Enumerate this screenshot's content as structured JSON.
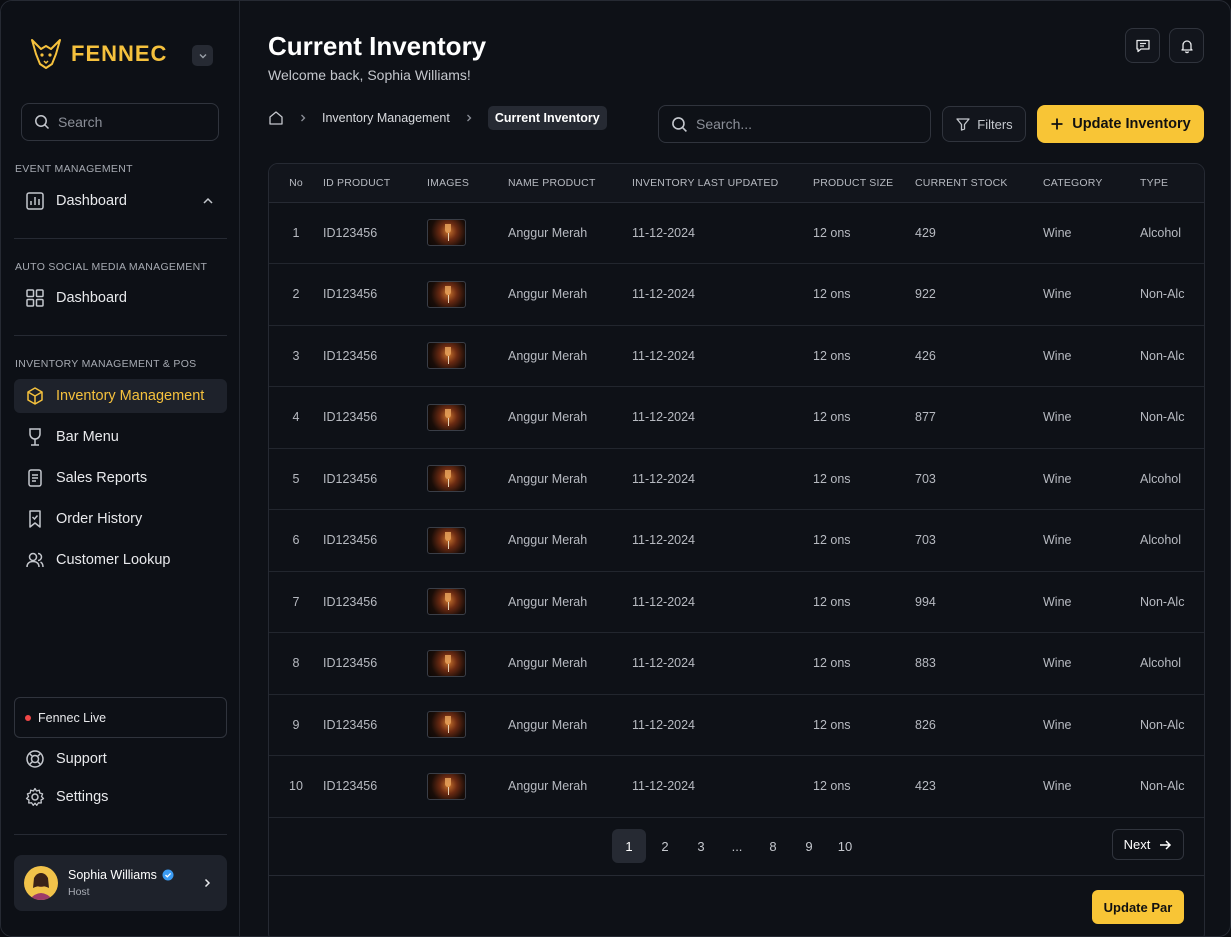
{
  "brand": {
    "name": "FENNEC"
  },
  "sidebar": {
    "search_placeholder": "Search",
    "sections": {
      "event": {
        "title": "EVENT MANAGEMENT",
        "dashboard": "Dashboard"
      },
      "social": {
        "title": "AUTO SOCIAL MEDIA MANAGEMENT",
        "dashboard": "Dashboard"
      },
      "inventory": {
        "title": "INVENTORY MANAGEMENT & POS",
        "items": [
          "Inventory Management",
          "Bar Menu",
          "Sales Reports",
          "Order History",
          "Customer Lookup"
        ]
      }
    },
    "live_label": "Fennec Live",
    "support": "Support",
    "settings": "Settings",
    "user": {
      "name": "Sophia Williams",
      "role": "Host"
    }
  },
  "header": {
    "title": "Current Inventory",
    "subtitle": "Welcome back, Sophia Williams!"
  },
  "breadcrumb": {
    "parent": "Inventory Management",
    "current": "Current Inventory"
  },
  "toolbar": {
    "search_placeholder": "Search...",
    "filters_label": "Filters",
    "update_label": "Update Inventory"
  },
  "table": {
    "columns": [
      "No",
      "ID PRODUCT",
      "IMAGES",
      "NAME PRODUCT",
      "INVENTORY LAST UPDATED",
      "PRODUCT SIZE",
      "CURRENT STOCK",
      "CATEGORY",
      "TYPE"
    ],
    "rows": [
      {
        "no": "1",
        "id": "ID123456",
        "name": "Anggur Merah",
        "updated": "11-12-2024",
        "size": "12 ons",
        "stock": "429",
        "category": "Wine",
        "type": "Alcohol"
      },
      {
        "no": "2",
        "id": "ID123456",
        "name": "Anggur Merah",
        "updated": "11-12-2024",
        "size": "12 ons",
        "stock": "922",
        "category": "Wine",
        "type": "Non-Alc"
      },
      {
        "no": "3",
        "id": "ID123456",
        "name": "Anggur Merah",
        "updated": "11-12-2024",
        "size": "12 ons",
        "stock": "426",
        "category": "Wine",
        "type": "Non-Alc"
      },
      {
        "no": "4",
        "id": "ID123456",
        "name": "Anggur Merah",
        "updated": "11-12-2024",
        "size": "12 ons",
        "stock": "877",
        "category": "Wine",
        "type": "Non-Alc"
      },
      {
        "no": "5",
        "id": "ID123456",
        "name": "Anggur Merah",
        "updated": "11-12-2024",
        "size": "12 ons",
        "stock": "703",
        "category": "Wine",
        "type": "Alcohol"
      },
      {
        "no": "6",
        "id": "ID123456",
        "name": "Anggur Merah",
        "updated": "11-12-2024",
        "size": "12 ons",
        "stock": "703",
        "category": "Wine",
        "type": "Alcohol"
      },
      {
        "no": "7",
        "id": "ID123456",
        "name": "Anggur Merah",
        "updated": "11-12-2024",
        "size": "12 ons",
        "stock": "994",
        "category": "Wine",
        "type": "Non-Alc"
      },
      {
        "no": "8",
        "id": "ID123456",
        "name": "Anggur Merah",
        "updated": "11-12-2024",
        "size": "12 ons",
        "stock": "883",
        "category": "Wine",
        "type": "Alcohol"
      },
      {
        "no": "9",
        "id": "ID123456",
        "name": "Anggur Merah",
        "updated": "11-12-2024",
        "size": "12 ons",
        "stock": "826",
        "category": "Wine",
        "type": "Non-Alc"
      },
      {
        "no": "10",
        "id": "ID123456",
        "name": "Anggur Merah",
        "updated": "11-12-2024",
        "size": "12 ons",
        "stock": "423",
        "category": "Wine",
        "type": "Non-Alc"
      }
    ]
  },
  "pagination": {
    "pages": [
      "1",
      "2",
      "3",
      "...",
      "8",
      "9",
      "10"
    ],
    "current": "1",
    "next_label": "Next"
  },
  "footer": {
    "update_par_label": "Update Par"
  },
  "colors": {
    "accent": "#f8c536",
    "background": "#0e1117",
    "live_dot": "#f04747"
  }
}
